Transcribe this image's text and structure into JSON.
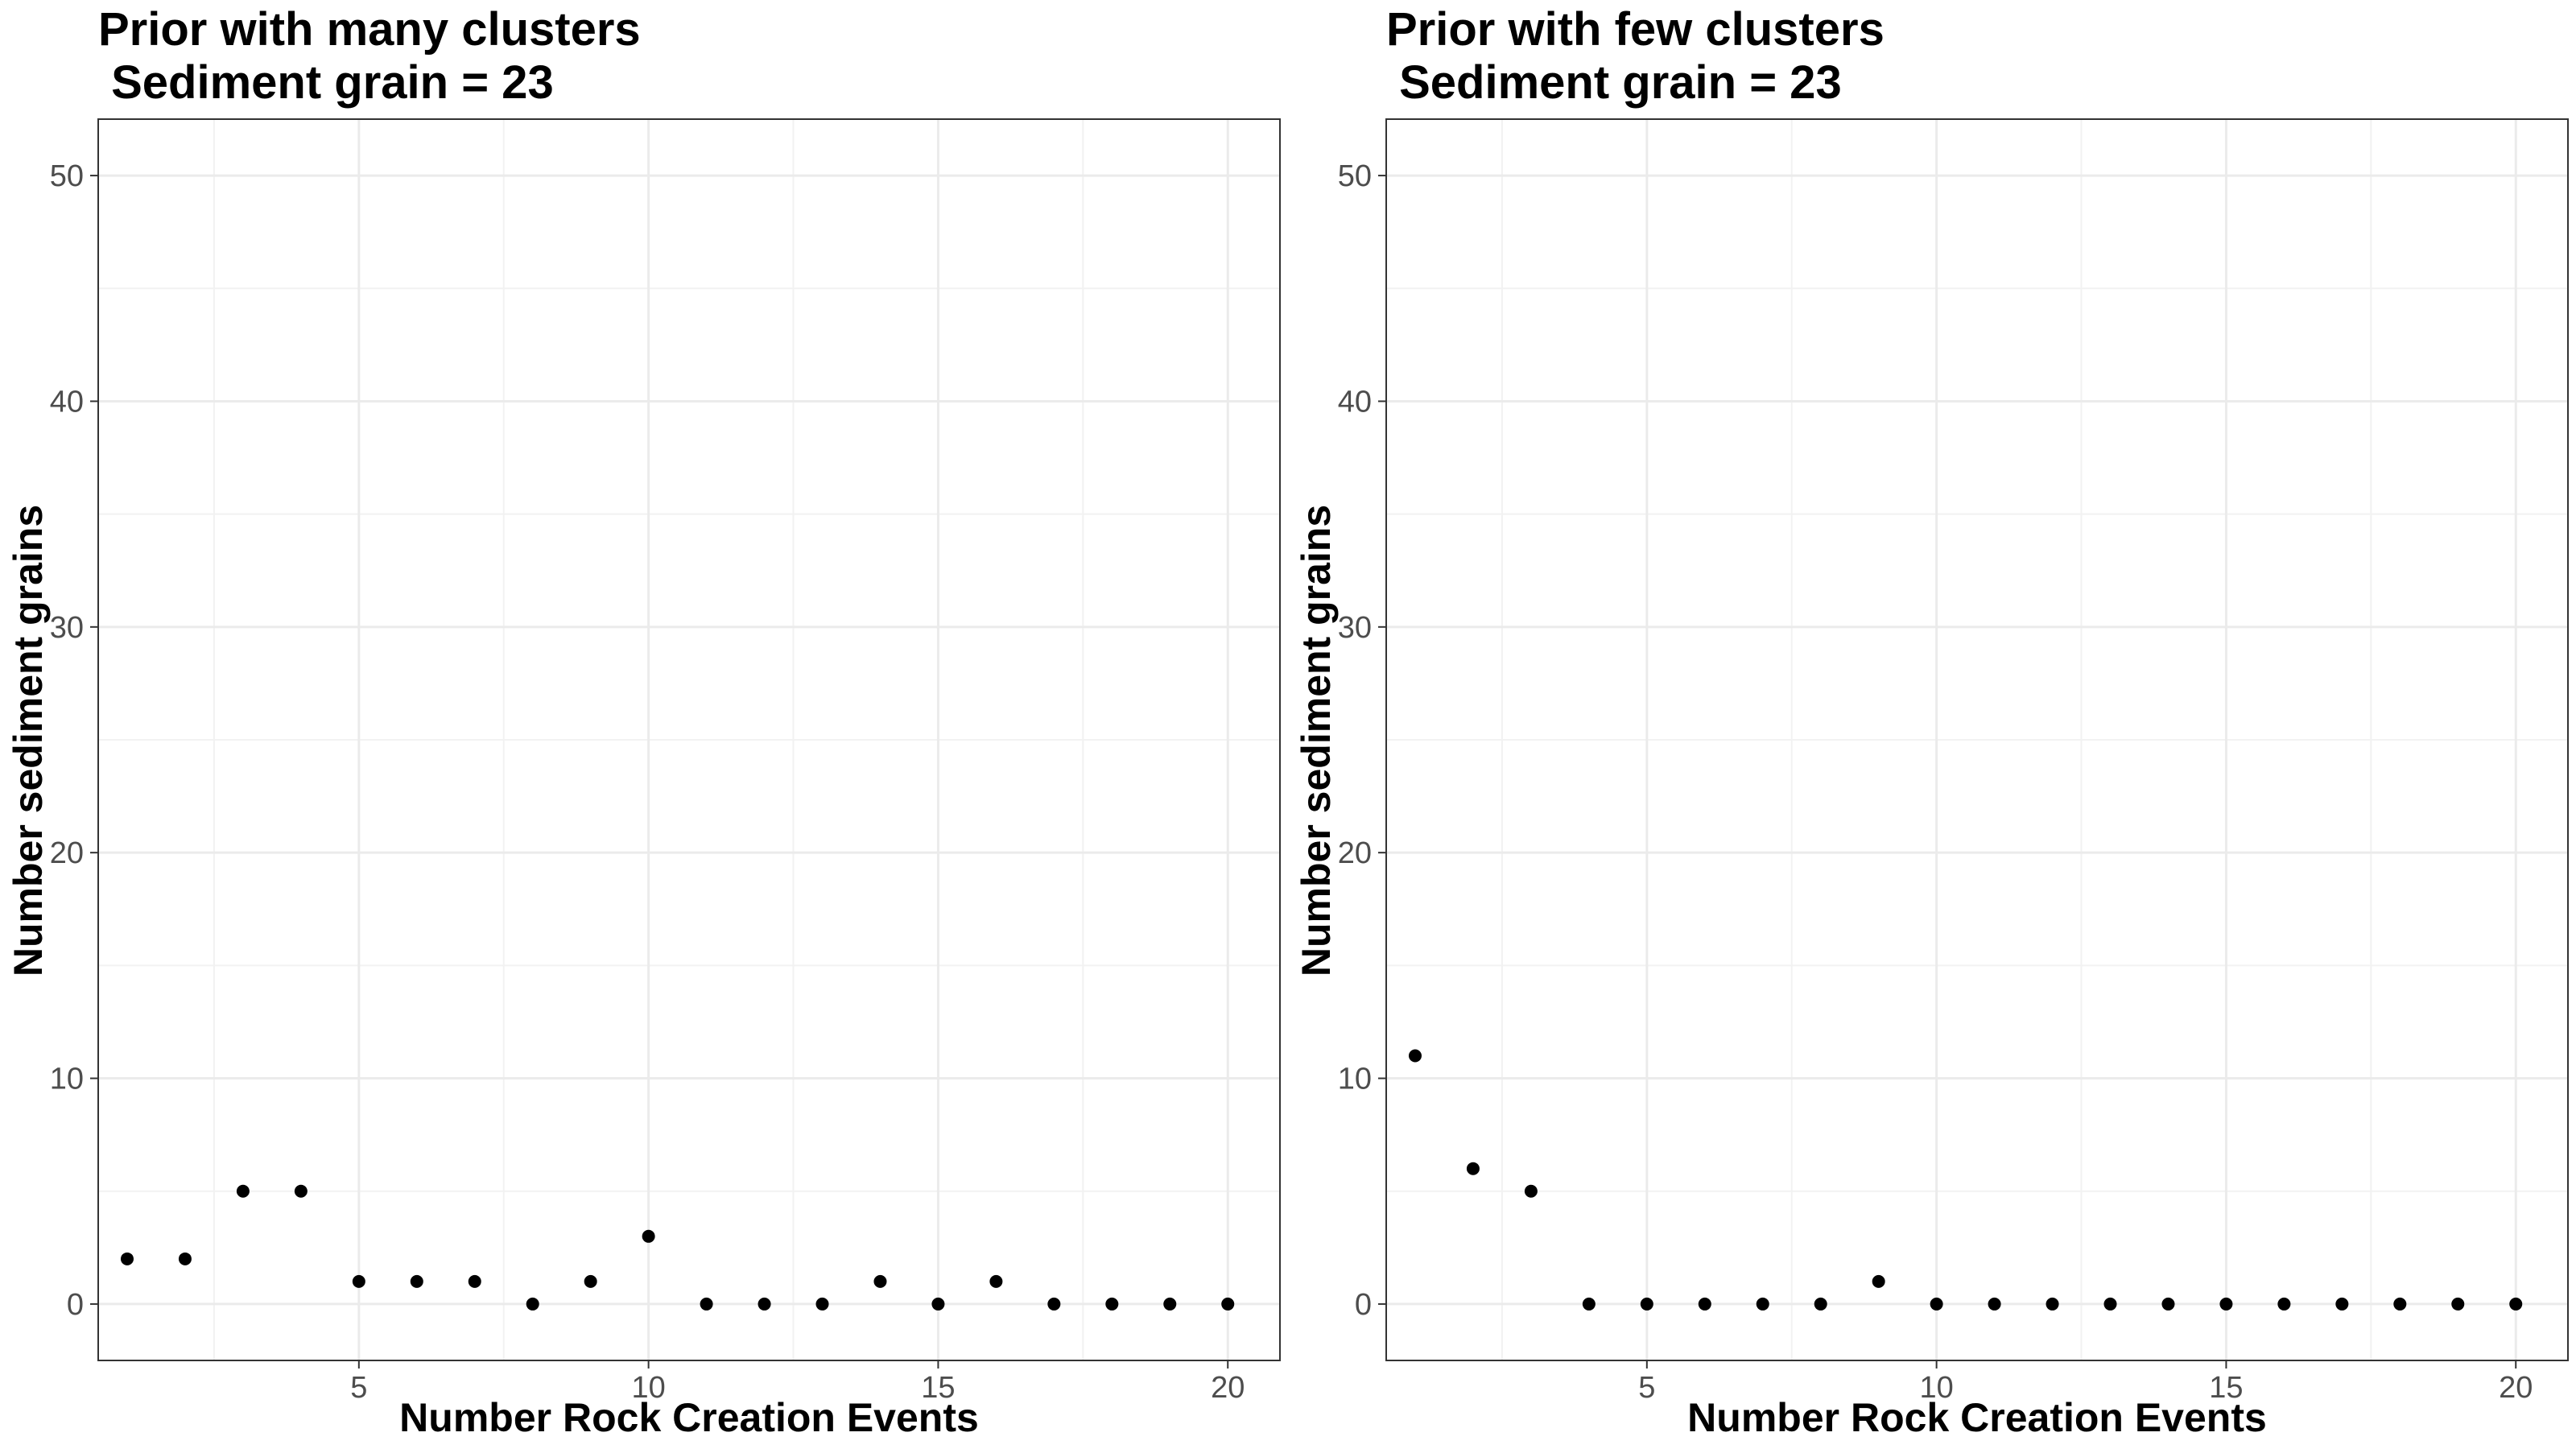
{
  "chart_data": [
    {
      "type": "scatter",
      "title_line1": "Prior with many clusters",
      "title_line2": " Sediment grain = 23",
      "xlabel": "Number Rock Creation Events",
      "ylabel": "Number sediment grains",
      "xlim": [
        0.5,
        20.9
      ],
      "ylim": [
        -2.5,
        52.5
      ],
      "xticks": [
        5,
        10,
        15,
        20
      ],
      "yticks": [
        0,
        10,
        20,
        30,
        40,
        50
      ],
      "grid": true,
      "x": [
        1,
        2,
        3,
        4,
        5,
        6,
        7,
        8,
        9,
        10,
        11,
        12,
        13,
        14,
        15,
        16,
        17,
        18,
        19,
        20
      ],
      "y": [
        2,
        2,
        5,
        5,
        1,
        1,
        1,
        0,
        1,
        3,
        0,
        0,
        0,
        1,
        0,
        1,
        0,
        0,
        0,
        0
      ],
      "point_color": "#000000"
    },
    {
      "type": "scatter",
      "title_line1": "Prior with few clusters",
      "title_line2": " Sediment grain = 23",
      "xlabel": "Number Rock Creation Events",
      "ylabel": "Number sediment grains",
      "xlim": [
        0.5,
        20.9
      ],
      "ylim": [
        -2.5,
        52.5
      ],
      "xticks": [
        5,
        10,
        15,
        20
      ],
      "yticks": [
        0,
        10,
        20,
        30,
        40,
        50
      ],
      "grid": true,
      "x": [
        1,
        2,
        3,
        4,
        5,
        6,
        7,
        8,
        9,
        10,
        11,
        12,
        13,
        14,
        15,
        16,
        17,
        18,
        19,
        20
      ],
      "y": [
        11,
        6,
        5,
        0,
        0,
        0,
        0,
        0,
        1,
        0,
        0,
        0,
        0,
        0,
        0,
        0,
        0,
        0,
        0,
        0
      ],
      "point_color": "#000000"
    }
  ]
}
